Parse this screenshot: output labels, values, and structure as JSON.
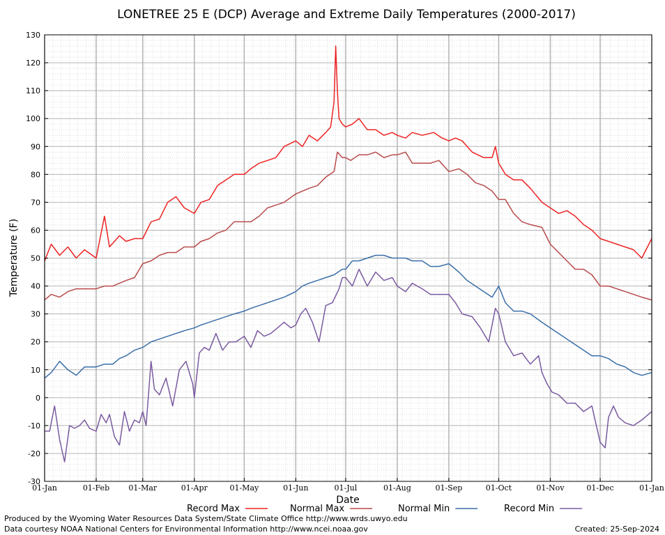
{
  "chart_data": {
    "type": "line",
    "title": "LONETREE 25 E (DCP) Average and Extreme Daily Temperatures (2000-2017)",
    "xlabel": "Date",
    "ylabel": "Temperature (F)",
    "ylim": [
      -30,
      130
    ],
    "yticks": [
      -30,
      -20,
      -10,
      0,
      10,
      20,
      30,
      40,
      50,
      60,
      70,
      80,
      90,
      100,
      110,
      120,
      130
    ],
    "x_tick_labels": [
      "01-Jan",
      "01-Feb",
      "01-Mar",
      "01-Apr",
      "01-May",
      "01-Jun",
      "01-Jul",
      "01-Aug",
      "01-Sep",
      "01-Oct",
      "01-Nov",
      "01-Dec",
      "01-Jan"
    ],
    "x_tick_days": [
      1,
      32,
      60,
      91,
      121,
      152,
      182,
      213,
      244,
      274,
      305,
      335,
      366
    ],
    "grid": true,
    "legend_position": "bottom",
    "series_style": {
      "Record Max": "#ee2222",
      "Normal Max": "#b84a4a",
      "Normal Min": "#3a6ea8",
      "Record Min": "#7a5aa0"
    },
    "series": [
      {
        "name": "Record Max",
        "color": "#ee2222",
        "x": [
          1,
          5,
          10,
          15,
          20,
          25,
          32,
          37,
          40,
          46,
          50,
          55,
          60,
          65,
          70,
          75,
          80,
          85,
          91,
          95,
          100,
          105,
          110,
          115,
          121,
          125,
          130,
          135,
          140,
          145,
          152,
          156,
          160,
          165,
          170,
          173,
          175,
          176,
          177,
          178,
          180,
          182,
          186,
          190,
          195,
          200,
          205,
          210,
          213,
          218,
          222,
          228,
          235,
          240,
          244,
          248,
          252,
          258,
          265,
          270,
          272,
          274,
          278,
          283,
          288,
          293,
          300,
          305,
          310,
          315,
          320,
          325,
          330,
          335,
          340,
          345,
          350,
          355,
          360,
          366
        ],
        "values": [
          49,
          55,
          51,
          54,
          50,
          53,
          50,
          65,
          54,
          58,
          56,
          57,
          57,
          63,
          64,
          70,
          72,
          68,
          66,
          70,
          71,
          76,
          78,
          80,
          80,
          82,
          84,
          85,
          86,
          90,
          92,
          90,
          94,
          92,
          95,
          97,
          106,
          126,
          110,
          100,
          98,
          97,
          98,
          100,
          96,
          96,
          94,
          95,
          94,
          93,
          95,
          94,
          95,
          93,
          92,
          93,
          92,
          88,
          86,
          86,
          90,
          84,
          80,
          78,
          78,
          75,
          70,
          68,
          66,
          67,
          65,
          62,
          60,
          57,
          56,
          55,
          54,
          53,
          50,
          57
        ]
      },
      {
        "name": "Normal Max",
        "color": "#b84a4a",
        "x": [
          1,
          5,
          10,
          15,
          20,
          25,
          32,
          37,
          42,
          46,
          50,
          55,
          60,
          65,
          70,
          75,
          80,
          85,
          91,
          95,
          100,
          105,
          110,
          115,
          121,
          125,
          130,
          135,
          140,
          145,
          152,
          156,
          160,
          165,
          170,
          175,
          177,
          180,
          182,
          185,
          190,
          195,
          200,
          205,
          210,
          213,
          218,
          222,
          228,
          233,
          238,
          244,
          250,
          255,
          260,
          265,
          270,
          274,
          278,
          283,
          288,
          293,
          300,
          305,
          310,
          315,
          320,
          325,
          330,
          335,
          340,
          345,
          350,
          355,
          360,
          366
        ],
        "values": [
          35,
          37,
          36,
          38,
          39,
          39,
          39,
          40,
          40,
          41,
          42,
          43,
          48,
          49,
          51,
          52,
          52,
          54,
          54,
          56,
          57,
          59,
          60,
          63,
          63,
          63,
          65,
          68,
          69,
          70,
          73,
          74,
          75,
          76,
          79,
          81,
          88,
          86,
          86,
          85,
          87,
          87,
          88,
          86,
          87,
          87,
          88,
          84,
          84,
          84,
          85,
          81,
          82,
          80,
          77,
          76,
          74,
          71,
          71,
          66,
          63,
          62,
          61,
          55,
          52,
          49,
          46,
          46,
          44,
          40,
          40,
          39,
          38,
          37,
          36,
          35
        ]
      },
      {
        "name": "Normal Min",
        "color": "#3a6ea8",
        "x": [
          1,
          5,
          10,
          15,
          20,
          25,
          32,
          37,
          42,
          46,
          50,
          55,
          60,
          65,
          70,
          75,
          80,
          85,
          91,
          95,
          100,
          105,
          110,
          115,
          121,
          125,
          130,
          135,
          140,
          145,
          152,
          156,
          160,
          165,
          170,
          175,
          180,
          182,
          186,
          190,
          195,
          200,
          205,
          210,
          213,
          218,
          222,
          228,
          233,
          238,
          244,
          250,
          255,
          260,
          265,
          270,
          274,
          278,
          283,
          288,
          293,
          300,
          305,
          310,
          315,
          320,
          325,
          330,
          335,
          340,
          345,
          350,
          355,
          360,
          366
        ],
        "values": [
          7,
          9,
          13,
          10,
          8,
          11,
          11,
          12,
          12,
          14,
          15,
          17,
          18,
          20,
          21,
          22,
          23,
          24,
          25,
          26,
          27,
          28,
          29,
          30,
          31,
          32,
          33,
          34,
          35,
          36,
          38,
          40,
          41,
          42,
          43,
          44,
          46,
          46,
          49,
          49,
          50,
          51,
          51,
          50,
          50,
          50,
          49,
          49,
          47,
          47,
          48,
          45,
          42,
          40,
          38,
          36,
          40,
          34,
          31,
          31,
          30,
          27,
          25,
          23,
          21,
          19,
          17,
          15,
          15,
          14,
          12,
          11,
          9,
          8,
          9
        ]
      },
      {
        "name": "Record Min",
        "color": "#7a5aa0",
        "x": [
          1,
          4,
          7,
          10,
          13,
          16,
          19,
          22,
          25,
          28,
          32,
          35,
          38,
          40,
          43,
          46,
          49,
          52,
          55,
          58,
          60,
          62,
          65,
          67,
          70,
          74,
          78,
          82,
          86,
          90,
          91,
          94,
          97,
          100,
          104,
          108,
          112,
          116,
          121,
          125,
          129,
          133,
          137,
          141,
          145,
          149,
          152,
          155,
          158,
          162,
          166,
          170,
          174,
          178,
          180,
          182,
          186,
          190,
          195,
          200,
          205,
          210,
          213,
          218,
          222,
          228,
          233,
          238,
          244,
          248,
          252,
          258,
          263,
          268,
          272,
          274,
          278,
          283,
          288,
          293,
          298,
          300,
          303,
          306,
          310,
          315,
          320,
          325,
          330,
          335,
          338,
          340,
          343,
          346,
          350,
          355,
          360,
          366
        ],
        "values": [
          -12,
          -12,
          -3,
          -15,
          -23,
          -10,
          -11,
          -10,
          -8,
          -11,
          -12,
          -6,
          -9,
          -6,
          -14,
          -17,
          -5,
          -12,
          -8,
          -9,
          -5,
          -10,
          13,
          3,
          1,
          7,
          -3,
          10,
          13,
          5,
          0,
          16,
          18,
          17,
          23,
          17,
          20,
          20,
          22,
          18,
          24,
          22,
          23,
          25,
          27,
          25,
          26,
          30,
          32,
          27,
          20,
          33,
          34,
          39,
          43,
          43,
          40,
          46,
          40,
          45,
          42,
          43,
          40,
          38,
          41,
          39,
          37,
          37,
          37,
          34,
          30,
          29,
          25,
          20,
          32,
          30,
          20,
          15,
          16,
          12,
          15,
          9,
          5,
          2,
          1,
          -2,
          -2,
          -5,
          -3,
          -16,
          -18,
          -7,
          -3,
          -7,
          -9,
          -10,
          -8,
          -5
        ]
      }
    ]
  },
  "legend": [
    {
      "label": "Record Max",
      "color": "#ee2222"
    },
    {
      "label": "Normal Max",
      "color": "#b84a4a"
    },
    {
      "label": "Normal Min",
      "color": "#3a6ea8"
    },
    {
      "label": "Record Min",
      "color": "#7a5aa0"
    }
  ],
  "footer": {
    "produced_by": "Produced by the Wyoming Water Resources Data System/State Climate Office http://www.wrds.uwyo.edu",
    "data_courtesy": "Data courtesy NOAA National Centers for Environmental Information http://www.ncei.noaa.gov",
    "created": "Created: 25-Sep-2024"
  }
}
